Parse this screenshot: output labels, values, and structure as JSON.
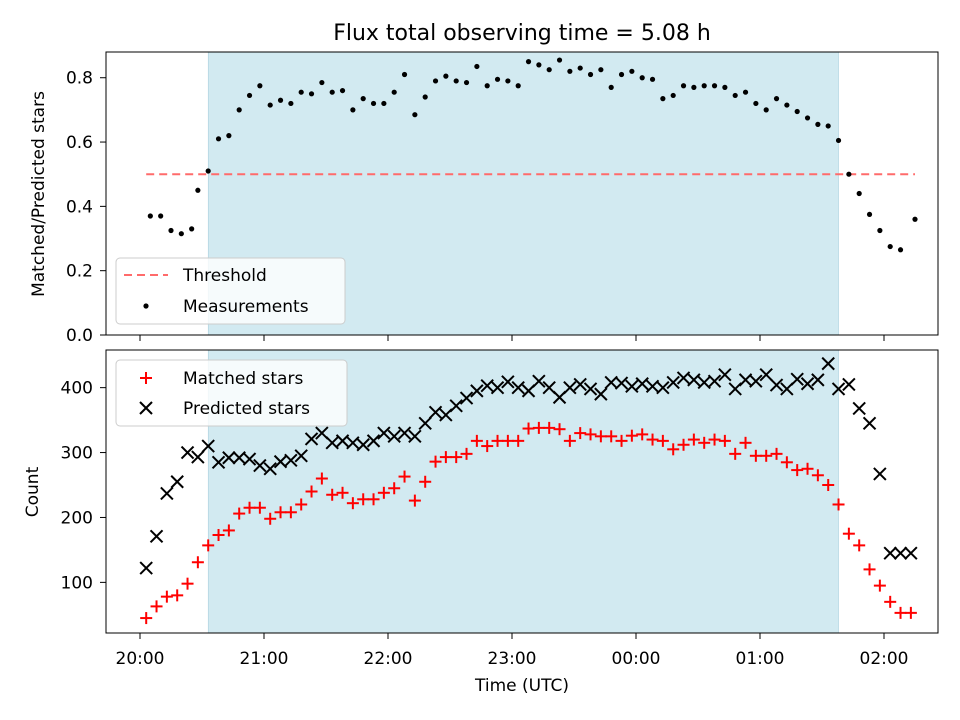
{
  "chart_data": [
    {
      "type": "scatter",
      "title": "Flux total observing time = 5.08 h",
      "ylabel": "Matched/Predicted stars",
      "xlabel": "",
      "ylim": [
        0,
        0.88
      ],
      "yticks": [
        "0.0",
        "0.2",
        "0.4",
        "0.6",
        "0.8"
      ],
      "threshold": {
        "name": "Threshold",
        "value": 0.5,
        "x_start": "20:03",
        "x_end": "02:15",
        "color": "#ff6b6b"
      },
      "shaded_region": {
        "start": "20:33",
        "end": "01:38",
        "color": "#add8e6"
      },
      "legend_position": "lower-left",
      "series": [
        {
          "name": "Measurements",
          "color": "#000000",
          "x": [
            "20:05",
            "20:10",
            "20:15",
            "20:20",
            "20:25",
            "20:28",
            "20:33",
            "20:38",
            "20:43",
            "20:48",
            "20:53",
            "20:58",
            "21:03",
            "21:08",
            "21:13",
            "21:18",
            "21:23",
            "21:28",
            "21:33",
            "21:38",
            "21:43",
            "21:48",
            "21:53",
            "21:58",
            "22:03",
            "22:08",
            "22:13",
            "22:18",
            "22:23",
            "22:28",
            "22:33",
            "22:38",
            "22:43",
            "22:48",
            "22:53",
            "22:58",
            "23:03",
            "23:08",
            "23:13",
            "23:18",
            "23:23",
            "23:28",
            "23:33",
            "23:38",
            "23:43",
            "23:48",
            "23:53",
            "23:58",
            "00:03",
            "00:08",
            "00:13",
            "00:18",
            "00:23",
            "00:28",
            "00:33",
            "00:38",
            "00:43",
            "00:48",
            "00:53",
            "00:58",
            "01:03",
            "01:08",
            "01:13",
            "01:18",
            "01:23",
            "01:28",
            "01:33",
            "01:38",
            "01:43",
            "01:48",
            "01:53",
            "01:58",
            "02:03",
            "02:08",
            "02:15"
          ],
          "y": [
            0.37,
            0.37,
            0.325,
            0.315,
            0.33,
            0.45,
            0.51,
            0.61,
            0.62,
            0.7,
            0.745,
            0.775,
            0.715,
            0.73,
            0.72,
            0.755,
            0.75,
            0.785,
            0.755,
            0.76,
            0.7,
            0.735,
            0.72,
            0.72,
            0.755,
            0.81,
            0.685,
            0.74,
            0.79,
            0.805,
            0.79,
            0.785,
            0.835,
            0.775,
            0.795,
            0.79,
            0.775,
            0.85,
            0.84,
            0.825,
            0.855,
            0.82,
            0.83,
            0.81,
            0.825,
            0.77,
            0.81,
            0.82,
            0.8,
            0.795,
            0.735,
            0.745,
            0.775,
            0.77,
            0.775,
            0.775,
            0.77,
            0.745,
            0.755,
            0.72,
            0.7,
            0.735,
            0.715,
            0.695,
            0.675,
            0.655,
            0.65,
            0.605,
            0.5,
            0.44,
            0.375,
            0.325,
            0.275,
            0.265,
            0.36
          ]
        }
      ]
    },
    {
      "type": "scatter",
      "title": "",
      "ylabel": "Count",
      "xlabel": "Time (UTC)",
      "ylim": [
        22,
        458
      ],
      "yticks": [
        "100",
        "200",
        "300",
        "400"
      ],
      "xticks": [
        "20:00",
        "21:00",
        "22:00",
        "23:00",
        "00:00",
        "01:00",
        "02:00"
      ],
      "shaded_region": {
        "start": "20:33",
        "end": "01:38",
        "color": "#add8e6"
      },
      "legend_position": "upper-left",
      "series": [
        {
          "name": "Matched stars",
          "color": "#ff0000",
          "marker": "+",
          "x": [
            "20:03",
            "20:08",
            "20:13",
            "20:18",
            "20:23",
            "20:28",
            "20:33",
            "20:38",
            "20:43",
            "20:48",
            "20:53",
            "20:58",
            "21:03",
            "21:08",
            "21:13",
            "21:18",
            "21:23",
            "21:28",
            "21:33",
            "21:38",
            "21:43",
            "21:48",
            "21:53",
            "21:58",
            "22:03",
            "22:08",
            "22:13",
            "22:18",
            "22:23",
            "22:28",
            "22:33",
            "22:38",
            "22:43",
            "22:48",
            "22:53",
            "22:58",
            "23:03",
            "23:08",
            "23:13",
            "23:18",
            "23:23",
            "23:28",
            "23:33",
            "23:38",
            "23:43",
            "23:48",
            "23:53",
            "23:58",
            "00:03",
            "00:08",
            "00:13",
            "00:18",
            "00:23",
            "00:28",
            "00:33",
            "00:38",
            "00:43",
            "00:48",
            "00:53",
            "00:58",
            "01:03",
            "01:08",
            "01:13",
            "01:18",
            "01:23",
            "01:28",
            "01:33",
            "01:38",
            "01:43",
            "01:48",
            "01:53",
            "01:58",
            "02:03",
            "02:08",
            "02:13"
          ],
          "y": [
            45,
            63,
            78,
            80,
            98,
            131,
            157,
            173,
            180,
            206,
            215,
            215,
            198,
            208,
            208,
            220,
            240,
            260,
            235,
            238,
            222,
            228,
            228,
            238,
            245,
            263,
            226,
            255,
            286,
            293,
            293,
            298,
            318,
            310,
            318,
            318,
            318,
            337,
            338,
            338,
            336,
            318,
            330,
            328,
            325,
            325,
            318,
            326,
            328,
            320,
            318,
            305,
            312,
            320,
            315,
            320,
            318,
            298,
            315,
            295,
            295,
            298,
            285,
            273,
            275,
            265,
            250,
            220,
            175,
            157,
            120,
            95,
            70,
            53,
            53
          ]
        },
        {
          "name": "Predicted stars",
          "color": "#000000",
          "marker": "x",
          "x": [
            "20:03",
            "20:08",
            "20:13",
            "20:18",
            "20:23",
            "20:28",
            "20:33",
            "20:38",
            "20:43",
            "20:48",
            "20:53",
            "20:58",
            "21:03",
            "21:08",
            "21:13",
            "21:18",
            "21:23",
            "21:28",
            "21:33",
            "21:38",
            "21:43",
            "21:48",
            "21:53",
            "21:58",
            "22:03",
            "22:08",
            "22:13",
            "22:18",
            "22:23",
            "22:28",
            "22:33",
            "22:38",
            "22:43",
            "22:48",
            "22:53",
            "22:58",
            "23:03",
            "23:08",
            "23:13",
            "23:18",
            "23:23",
            "23:28",
            "23:33",
            "23:38",
            "23:43",
            "23:48",
            "23:53",
            "23:58",
            "00:03",
            "00:08",
            "00:13",
            "00:18",
            "00:23",
            "00:28",
            "00:33",
            "00:38",
            "00:43",
            "00:48",
            "00:53",
            "00:58",
            "01:03",
            "01:08",
            "01:13",
            "01:18",
            "01:23",
            "01:28",
            "01:33",
            "01:38",
            "01:43",
            "01:48",
            "01:53",
            "01:58",
            "02:03",
            "02:08",
            "02:13"
          ],
          "y": [
            122,
            171,
            237,
            255,
            300,
            293,
            310,
            285,
            292,
            292,
            290,
            280,
            275,
            286,
            288,
            295,
            321,
            330,
            315,
            318,
            315,
            312,
            318,
            330,
            325,
            330,
            325,
            345,
            362,
            358,
            372,
            384,
            395,
            403,
            400,
            409,
            400,
            395,
            410,
            400,
            385,
            400,
            405,
            398,
            390,
            408,
            407,
            402,
            406,
            402,
            400,
            408,
            415,
            412,
            408,
            410,
            420,
            398,
            412,
            410,
            420,
            404,
            398,
            413,
            406,
            412,
            437,
            398,
            405,
            368,
            345,
            267,
            145,
            145,
            145
          ]
        }
      ]
    }
  ]
}
